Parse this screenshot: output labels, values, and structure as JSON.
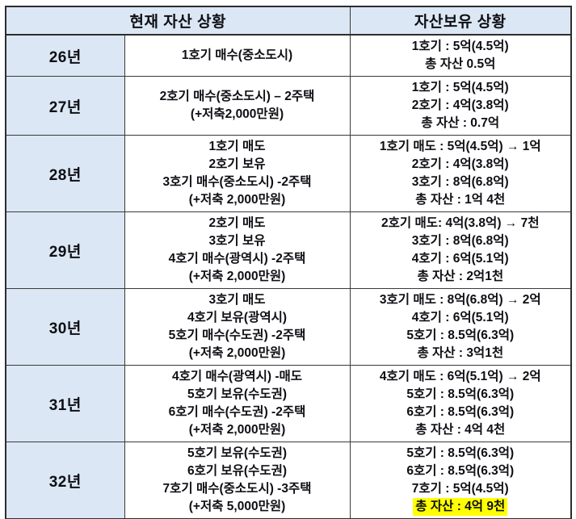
{
  "colors": {
    "cell_blue": "#dbe7f4",
    "highlight_yellow": "#ffff00",
    "border": "#2d2d2d",
    "text": "#0e0e14"
  },
  "table": {
    "header": {
      "left": "현재 자산 상황",
      "right": "자산보유 상황"
    },
    "rows": [
      {
        "year": "26년",
        "actions": [
          "1호기 매수(중소도시)"
        ],
        "holdings": [
          "1호기 : 5억(4.5억)",
          "총 자산 0.5억"
        ],
        "highlight_total": false
      },
      {
        "year": "27년",
        "actions": [
          "2호기 매수(중소도시) – 2주택",
          "(+저축2,000만원)"
        ],
        "holdings": [
          "1호기 : 5억(4.5억)",
          "2호기 : 4억(3.8억)",
          "총 자산 : 0.7억"
        ],
        "highlight_total": false
      },
      {
        "year": "28년",
        "actions": [
          "1호기 매도",
          "2호기 보유",
          "3호기 매수(중소도시) -2주택",
          "(+저축 2,000만원)"
        ],
        "holdings": [
          "1호기 매도 : 5억(4.5억) → 1억",
          "2호기 : 4억(3.8억)",
          "3호기 : 8억(6.8억)",
          "총 자산 : 1억 4천"
        ],
        "highlight_total": false
      },
      {
        "year": "29년",
        "actions": [
          "2호기 매도",
          "3호기 보유",
          "4호기 매수(광역시) -2주택",
          "(+저축 2,000만원)"
        ],
        "holdings": [
          "2호기 매도: 4억(3.8억) → 7천",
          "3호기 : 8억(6.8억)",
          "4호기 : 6억(5.1억)",
          "총 자산 : 2억1천"
        ],
        "highlight_total": false
      },
      {
        "year": "30년",
        "actions": [
          "3호기 매도",
          "4호기 보유(광역시)",
          "5호기 매수(수도권) -2주택",
          "(+저축 2,000만원)"
        ],
        "holdings": [
          "3호기 매도 : 8억(6.8억) → 2억",
          "4호기 : 6억(5.1억)",
          "5호기 : 8.5억(6.3억)",
          "총 자산 : 3억1천"
        ],
        "highlight_total": false
      },
      {
        "year": "31년",
        "actions": [
          "4호기 매수(광역시) -매도",
          "5호기 보유(수도권)",
          "6호기 매수(수도권) -2주택",
          "(+저축 2,000만원)"
        ],
        "holdings": [
          "4호기 매도 : 6억(5.1억) → 2억",
          "5호기 : 8.5억(6.3억)",
          "6호기 : 8.5억(6.3억)",
          "총 자산 : 4억 4천"
        ],
        "highlight_total": false
      },
      {
        "year": "32년",
        "actions": [
          "5호기 보유(수도권)",
          "6호기 보유(수도권)",
          "7호기 매수(중소도시) -3주택",
          "(+저축 5,000만원)"
        ],
        "holdings": [
          "5호기 : 8.5억(6.3억)",
          "6호기 : 8.5억(6.3억)",
          "7호기 : 5억(4.5억)",
          "총 자산 : 4억 9천"
        ],
        "highlight_total": true
      }
    ]
  }
}
